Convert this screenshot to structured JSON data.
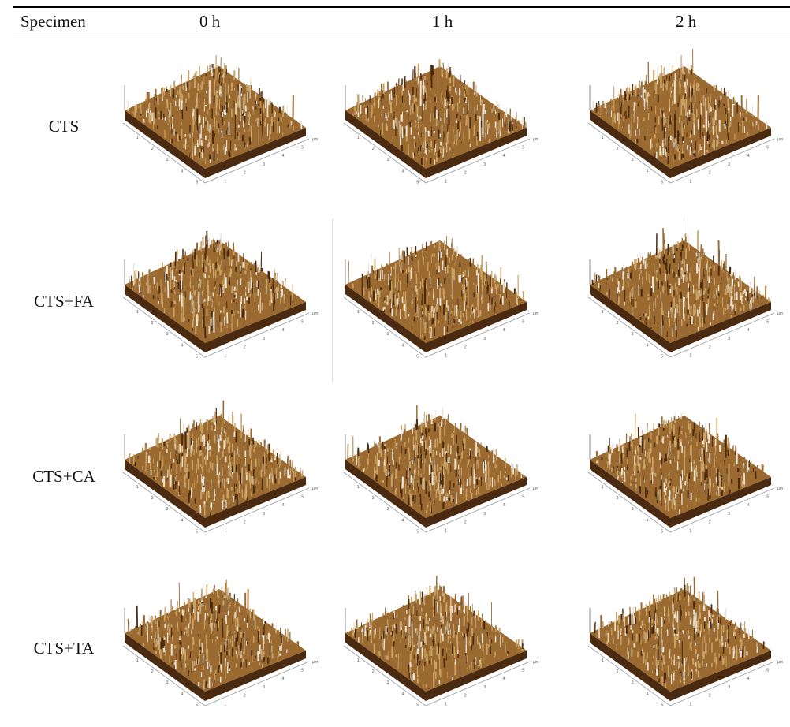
{
  "table": {
    "headers": [
      "Specimen",
      "0 h",
      "1 h",
      "2 h"
    ],
    "rows": [
      {
        "label": "CTS"
      },
      {
        "label": "CTS+FA"
      },
      {
        "label": "CTS+CA"
      },
      {
        "label": "CTS+TA"
      }
    ]
  },
  "surface_colors": {
    "dark": "#4a2a10",
    "mid": "#9a6a30",
    "light": "#c9a266",
    "highlight": "#e8e4da"
  },
  "axis_ticks": [
    "1",
    "2",
    "3",
    "4",
    "5"
  ],
  "axis_unit": "µm"
}
